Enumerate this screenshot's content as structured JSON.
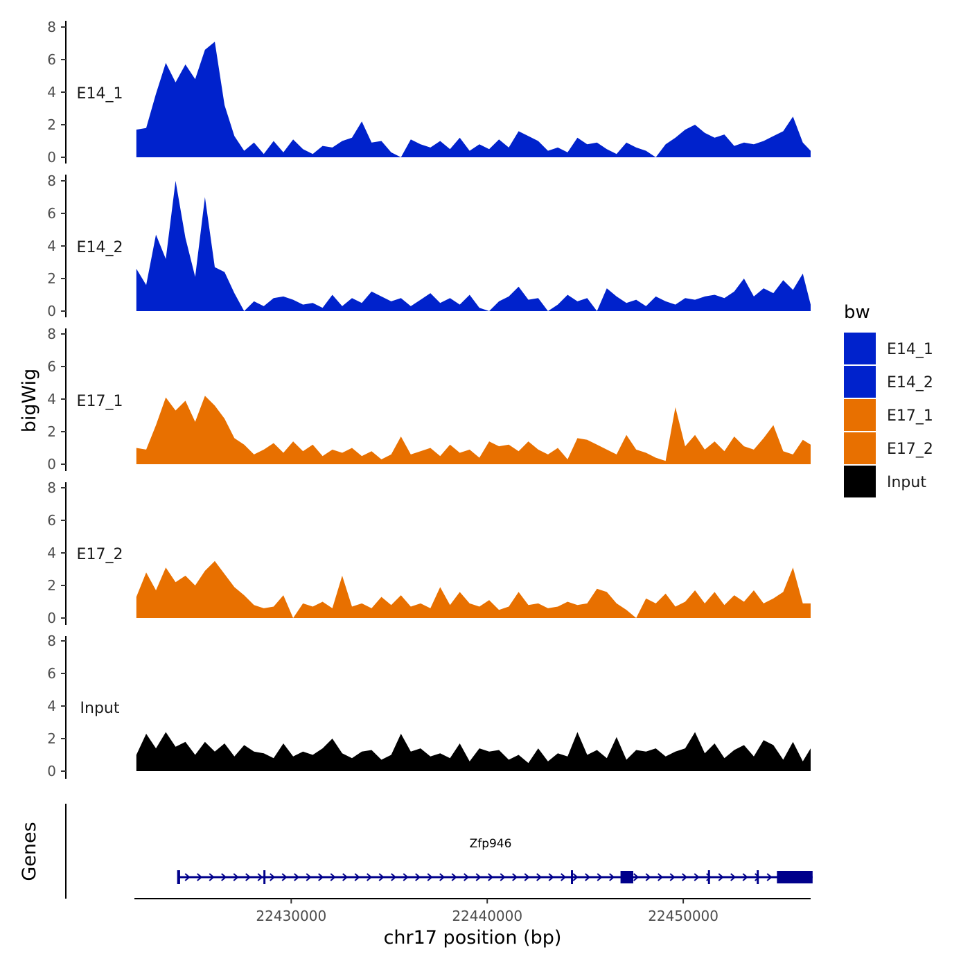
{
  "chart_data": {
    "type": "area",
    "title": "",
    "ylabel": "bigWig",
    "xlabel": "chr17 position (bp)",
    "chromosome": "chr17",
    "xlim": [
      22422000,
      22456500
    ],
    "ylim": [
      0,
      8
    ],
    "y_ticks": [
      "0",
      "2",
      "4",
      "6",
      "8"
    ],
    "x_ticks": [
      {
        "value": 22430000,
        "label": "22430000"
      },
      {
        "value": 22440000,
        "label": "22440000"
      },
      {
        "value": 22450000,
        "label": "22450000"
      }
    ],
    "legend": {
      "title": "bw",
      "position": "right"
    },
    "series": [
      {
        "name": "E14_1",
        "color": "#0022CC",
        "x": [
          22422100,
          22422600,
          22423100,
          22423600,
          22424100,
          22424600,
          22425100,
          22425600,
          22426100,
          22426600,
          22427100,
          22427600,
          22428100,
          22428600,
          22429100,
          22429600,
          22430100,
          22430600,
          22431100,
          22431600,
          22432100,
          22432600,
          22433100,
          22433600,
          22434100,
          22434600,
          22435100,
          22435600,
          22436100,
          22436600,
          22437100,
          22437600,
          22438100,
          22438600,
          22439100,
          22439600,
          22440100,
          22440600,
          22441100,
          22441600,
          22442100,
          22442600,
          22443100,
          22443600,
          22444100,
          22444600,
          22445100,
          22445600,
          22446100,
          22446600,
          22447100,
          22447600,
          22448100,
          22448600,
          22449100,
          22449600,
          22450100,
          22450600,
          22451100,
          22451600,
          22452100,
          22452600,
          22453100,
          22453600,
          22454100,
          22454600,
          22455100,
          22455600,
          22456100,
          22456500
        ],
        "values": [
          1.7,
          1.8,
          3.9,
          5.8,
          4.6,
          5.7,
          4.8,
          6.6,
          7.1,
          3.2,
          1.3,
          0.4,
          0.9,
          0.2,
          1.0,
          0.3,
          1.1,
          0.5,
          0.2,
          0.7,
          0.6,
          1.0,
          1.2,
          2.2,
          0.9,
          1.0,
          0.3,
          0,
          1.1,
          0.8,
          0.6,
          1.0,
          0.5,
          1.2,
          0.4,
          0.8,
          0.5,
          1.1,
          0.6,
          1.6,
          1.3,
          1.0,
          0.4,
          0.6,
          0.3,
          1.2,
          0.8,
          0.9,
          0.5,
          0.2,
          0.9,
          0.6,
          0.4,
          0,
          0.8,
          1.2,
          1.7,
          2.0,
          1.5,
          1.2,
          1.4,
          0.7,
          0.9,
          0.8,
          1.0,
          1.3,
          1.6,
          2.5,
          0.9,
          0.4
        ]
      },
      {
        "name": "E14_2",
        "color": "#0022CC",
        "x": [
          22422100,
          22422600,
          22423100,
          22423600,
          22424100,
          22424600,
          22425100,
          22425600,
          22426100,
          22426600,
          22427100,
          22427600,
          22428100,
          22428600,
          22429100,
          22429600,
          22430100,
          22430600,
          22431100,
          22431600,
          22432100,
          22432600,
          22433100,
          22433600,
          22434100,
          22434600,
          22435100,
          22435600,
          22436100,
          22436600,
          22437100,
          22437600,
          22438100,
          22438600,
          22439100,
          22439600,
          22440100,
          22440600,
          22441100,
          22441600,
          22442100,
          22442600,
          22443100,
          22443600,
          22444100,
          22444600,
          22445100,
          22445600,
          22446100,
          22446600,
          22447100,
          22447600,
          22448100,
          22448600,
          22449100,
          22449600,
          22450100,
          22450600,
          22451100,
          22451600,
          22452100,
          22452600,
          22453100,
          22453600,
          22454100,
          22454600,
          22455100,
          22455600,
          22456100,
          22456500
        ],
        "values": [
          2.6,
          1.6,
          4.7,
          3.2,
          8.0,
          4.5,
          2.1,
          7.0,
          2.7,
          2.4,
          1.1,
          0,
          0.6,
          0.3,
          0.8,
          0.9,
          0.7,
          0.4,
          0.5,
          0.2,
          1.0,
          0.3,
          0.8,
          0.5,
          1.2,
          0.9,
          0.6,
          0.8,
          0.3,
          0.7,
          1.1,
          0.5,
          0.8,
          0.4,
          1.0,
          0.2,
          0,
          0.6,
          0.9,
          1.5,
          0.7,
          0.8,
          0,
          0.4,
          1.0,
          0.6,
          0.8,
          0,
          1.4,
          0.9,
          0.5,
          0.7,
          0.3,
          0.9,
          0.6,
          0.4,
          0.8,
          0.7,
          0.9,
          1.0,
          0.8,
          1.2,
          2.0,
          0.9,
          1.4,
          1.1,
          1.9,
          1.3,
          2.3,
          0.4
        ]
      },
      {
        "name": "E17_1",
        "color": "#E87000",
        "x": [
          22422100,
          22422600,
          22423100,
          22423600,
          22424100,
          22424600,
          22425100,
          22425600,
          22426100,
          22426600,
          22427100,
          22427600,
          22428100,
          22428600,
          22429100,
          22429600,
          22430100,
          22430600,
          22431100,
          22431600,
          22432100,
          22432600,
          22433100,
          22433600,
          22434100,
          22434600,
          22435100,
          22435600,
          22436100,
          22436600,
          22437100,
          22437600,
          22438100,
          22438600,
          22439100,
          22439600,
          22440100,
          22440600,
          22441100,
          22441600,
          22442100,
          22442600,
          22443100,
          22443600,
          22444100,
          22444600,
          22445100,
          22445600,
          22446100,
          22446600,
          22447100,
          22447600,
          22448100,
          22448600,
          22449100,
          22449600,
          22450100,
          22450600,
          22451100,
          22451600,
          22452100,
          22452600,
          22453100,
          22453600,
          22454100,
          22454600,
          22455100,
          22455600,
          22456100,
          22456500
        ],
        "values": [
          1.0,
          0.9,
          2.4,
          4.1,
          3.3,
          3.9,
          2.6,
          4.2,
          3.6,
          2.8,
          1.6,
          1.2,
          0.6,
          0.9,
          1.3,
          0.7,
          1.4,
          0.8,
          1.2,
          0.5,
          0.9,
          0.7,
          1.0,
          0.5,
          0.8,
          0.3,
          0.6,
          1.7,
          0.6,
          0.8,
          1.0,
          0.5,
          1.2,
          0.7,
          0.9,
          0.4,
          1.4,
          1.1,
          1.2,
          0.8,
          1.4,
          0.9,
          0.6,
          1.0,
          0.3,
          1.6,
          1.5,
          1.2,
          0.9,
          0.6,
          1.8,
          0.9,
          0.7,
          0.4,
          0.2,
          3.5,
          1.1,
          1.8,
          0.9,
          1.4,
          0.8,
          1.7,
          1.1,
          0.9,
          1.6,
          2.4,
          0.8,
          0.6,
          1.5,
          1.2
        ]
      },
      {
        "name": "E17_2",
        "color": "#E87000",
        "x": [
          22422100,
          22422600,
          22423100,
          22423600,
          22424100,
          22424600,
          22425100,
          22425600,
          22426100,
          22426600,
          22427100,
          22427600,
          22428100,
          22428600,
          22429100,
          22429600,
          22430100,
          22430600,
          22431100,
          22431600,
          22432100,
          22432600,
          22433100,
          22433600,
          22434100,
          22434600,
          22435100,
          22435600,
          22436100,
          22436600,
          22437100,
          22437600,
          22438100,
          22438600,
          22439100,
          22439600,
          22440100,
          22440600,
          22441100,
          22441600,
          22442100,
          22442600,
          22443100,
          22443600,
          22444100,
          22444600,
          22445100,
          22445600,
          22446100,
          22446600,
          22447100,
          22447600,
          22448100,
          22448600,
          22449100,
          22449600,
          22450100,
          22450600,
          22451100,
          22451600,
          22452100,
          22452600,
          22453100,
          22453600,
          22454100,
          22454600,
          22455100,
          22455600,
          22456100,
          22456500
        ],
        "values": [
          1.3,
          2.8,
          1.7,
          3.1,
          2.2,
          2.6,
          2.0,
          2.9,
          3.5,
          2.7,
          1.9,
          1.4,
          0.8,
          0.6,
          0.7,
          1.4,
          0,
          0.9,
          0.7,
          1.0,
          0.6,
          2.6,
          0.7,
          0.9,
          0.6,
          1.3,
          0.8,
          1.4,
          0.7,
          0.9,
          0.6,
          1.9,
          0.8,
          1.6,
          0.9,
          0.7,
          1.1,
          0.5,
          0.7,
          1.6,
          0.8,
          0.9,
          0.6,
          0.7,
          1.0,
          0.8,
          0.9,
          1.8,
          1.6,
          0.9,
          0.5,
          0,
          1.2,
          0.9,
          1.5,
          0.7,
          1.0,
          1.7,
          0.9,
          1.6,
          0.8,
          1.4,
          1.0,
          1.7,
          0.9,
          1.2,
          1.6,
          3.1,
          0.9,
          0.9
        ]
      },
      {
        "name": "Input",
        "color": "#000000",
        "x": [
          22422100,
          22422600,
          22423100,
          22423600,
          22424100,
          22424600,
          22425100,
          22425600,
          22426100,
          22426600,
          22427100,
          22427600,
          22428100,
          22428600,
          22429100,
          22429600,
          22430100,
          22430600,
          22431100,
          22431600,
          22432100,
          22432600,
          22433100,
          22433600,
          22434100,
          22434600,
          22435100,
          22435600,
          22436100,
          22436600,
          22437100,
          22437600,
          22438100,
          22438600,
          22439100,
          22439600,
          22440100,
          22440600,
          22441100,
          22441600,
          22442100,
          22442600,
          22443100,
          22443600,
          22444100,
          22444600,
          22445100,
          22445600,
          22446100,
          22446600,
          22447100,
          22447600,
          22448100,
          22448600,
          22449100,
          22449600,
          22450100,
          22450600,
          22451100,
          22451600,
          22452100,
          22452600,
          22453100,
          22453600,
          22454100,
          22454600,
          22455100,
          22455600,
          22456100,
          22456500
        ],
        "values": [
          1.0,
          2.3,
          1.4,
          2.4,
          1.5,
          1.8,
          1.0,
          1.8,
          1.2,
          1.7,
          0.9,
          1.6,
          1.2,
          1.1,
          0.8,
          1.7,
          0.9,
          1.2,
          1.0,
          1.4,
          2.0,
          1.1,
          0.8,
          1.2,
          1.3,
          0.7,
          1.0,
          2.3,
          1.2,
          1.4,
          0.9,
          1.1,
          0.8,
          1.7,
          0.6,
          1.4,
          1.2,
          1.3,
          0.7,
          1.0,
          0.5,
          1.4,
          0.6,
          1.1,
          0.9,
          2.4,
          1.0,
          1.3,
          0.8,
          2.1,
          0.7,
          1.3,
          1.2,
          1.4,
          0.9,
          1.2,
          1.4,
          2.4,
          1.1,
          1.7,
          0.8,
          1.3,
          1.6,
          0.9,
          1.9,
          1.6,
          0.7,
          1.8,
          0.6,
          1.4
        ]
      }
    ],
    "gene_track": {
      "label": "Genes",
      "gene_name": "Zfp946",
      "color": "#00008B",
      "strand": "+",
      "start": 22424200,
      "end": 22456600,
      "exons": [
        {
          "start": 22424180,
          "end": 22424330
        },
        {
          "start": 22428580,
          "end": 22428660
        },
        {
          "start": 22444270,
          "end": 22444350
        },
        {
          "start": 22446800,
          "end": 22447450
        },
        {
          "start": 22451260,
          "end": 22451340
        },
        {
          "start": 22453750,
          "end": 22453830
        },
        {
          "start": 22454780,
          "end": 22456600
        }
      ]
    }
  }
}
